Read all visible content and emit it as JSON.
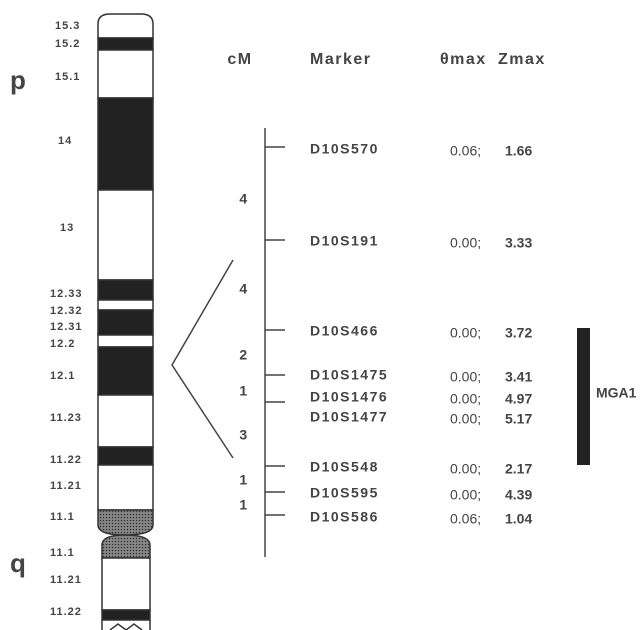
{
  "arms": {
    "p": "p",
    "q": "q"
  },
  "bands": [
    "15.3",
    "15.2",
    "15.1",
    "14",
    "13",
    "12.33",
    "12.32",
    "12.31",
    "12.2",
    "12.1",
    "11.23",
    "11.22",
    "11.21",
    "11.1",
    "11.1",
    "11.21",
    "11.22"
  ],
  "headers": {
    "cm": "cM",
    "marker": "Marker",
    "theta": "θmax",
    "zmax": "Zmax"
  },
  "markers": [
    {
      "name": "D10S570",
      "theta": "0.06;",
      "z": "1.66"
    },
    {
      "name": "D10S191",
      "theta": "0.00;",
      "z": "3.33"
    },
    {
      "name": "D10S466",
      "theta": "0.00;",
      "z": "3.72"
    },
    {
      "name": "D10S1475",
      "theta": "0.00;",
      "z": "3.41"
    },
    {
      "name": "D10S1476",
      "theta": "0.00;",
      "z": "4.97"
    },
    {
      "name": "D10S1477",
      "theta": "0.00;",
      "z": "5.17"
    },
    {
      "name": "D10S548",
      "theta": "0.00;",
      "z": "2.17"
    },
    {
      "name": "D10S595",
      "theta": "0.00;",
      "z": "4.39"
    },
    {
      "name": "D10S586",
      "theta": "0.06;",
      "z": "1.04"
    }
  ],
  "intervals": [
    "4",
    "4",
    "2",
    "1",
    "3",
    "1",
    "1"
  ],
  "region": "MGA1"
}
